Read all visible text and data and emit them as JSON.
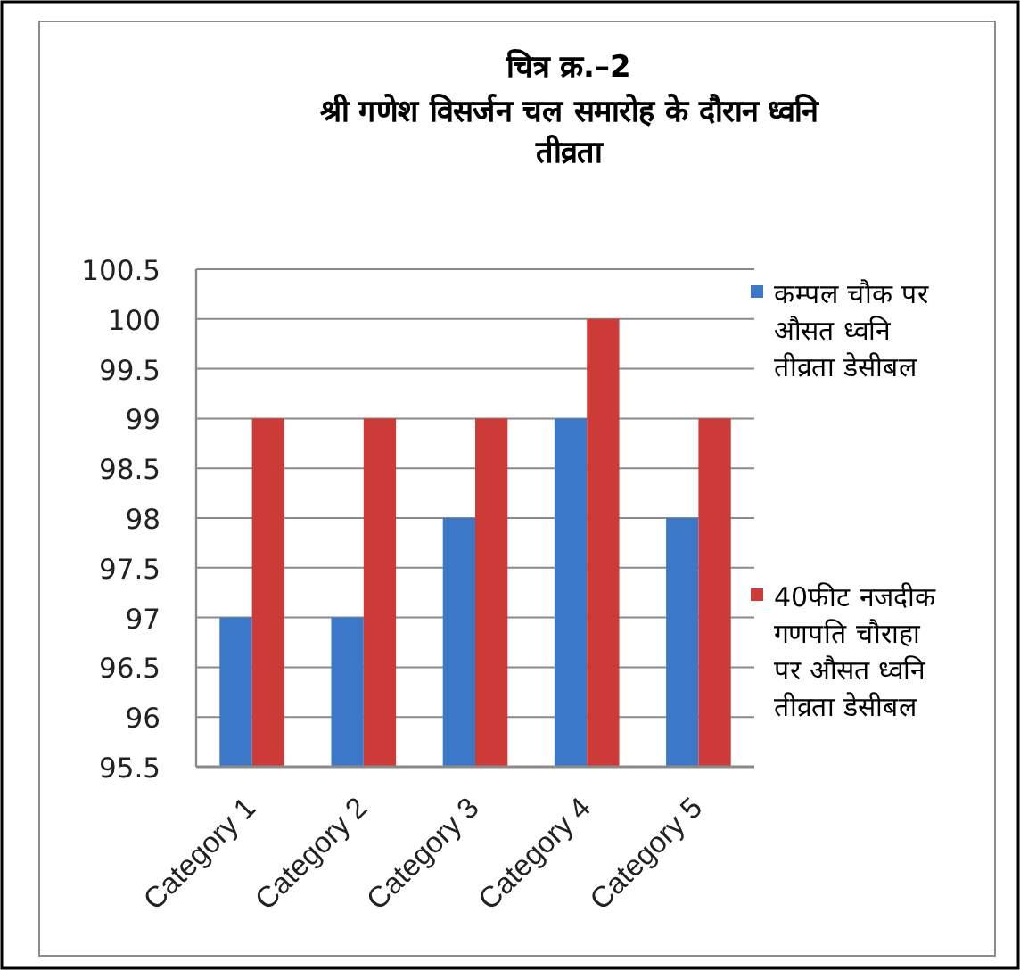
{
  "chart_data": {
    "type": "bar",
    "title": "चित्र क्र.–2",
    "subtitle": "श्री गणेश विसर्जन चल समारोह के दौरान ध्वनि तीव्रता",
    "categories": [
      "Category 1",
      "Category 2",
      "Category 3",
      "Category 4",
      "Category 5"
    ],
    "series": [
      {
        "name": "कम्पल चौक पर औसत ध्वनि तीव्रता डेसीबल",
        "color": "#3c78c8",
        "values": [
          97,
          97,
          98,
          99,
          98
        ]
      },
      {
        "name": "40फीट नजदीक गणपति चौराहा पर औसत ध्वनि तीव्रता डेसीबल",
        "color": "#cc3b37",
        "values": [
          99,
          99,
          99,
          100,
          99
        ]
      }
    ],
    "ylim": [
      95.5,
      100.5
    ],
    "yticks": [
      95.5,
      96,
      96.5,
      97,
      97.5,
      98,
      98.5,
      99,
      99.5,
      100,
      100.5
    ],
    "grid": "y",
    "legend": "right"
  }
}
